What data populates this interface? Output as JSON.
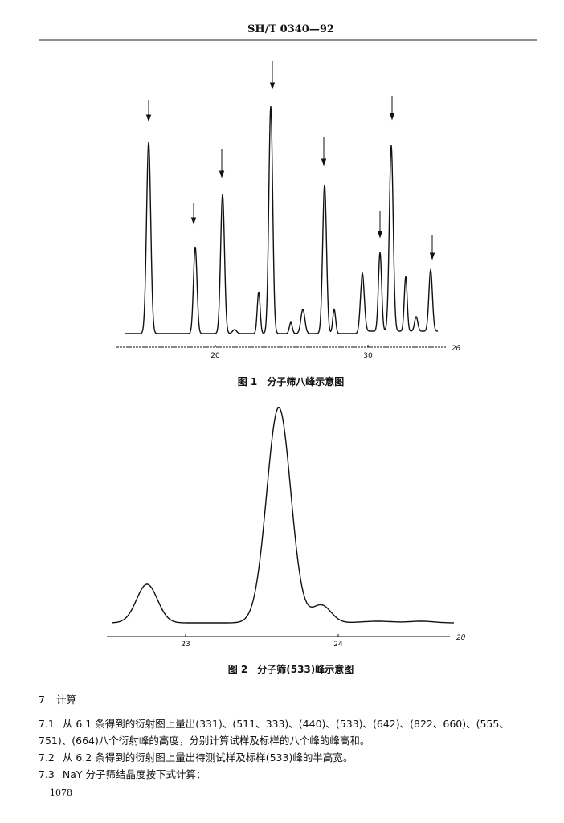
{
  "header": "SH/T 0340—92",
  "figures": [
    {
      "caption": "图 1　分子筛八峰示意图",
      "x_axis_label": "2θ",
      "xticks": [
        "20",
        "30"
      ]
    },
    {
      "caption": "图 2　分子筛(533)峰示意图",
      "x_axis_label": "2θ",
      "xticks": [
        "23",
        "24"
      ]
    }
  ],
  "section": {
    "number": "7",
    "title": "计算"
  },
  "paragraphs": [
    {
      "number": "7.1",
      "text": "从 6.1 条得到的衍射图上量出(331)、(511、333)、(440)、(533)、(642)、(822、660)、(555、751)、(664)八个衍射峰的高度，分别计算试样及标样的八个峰的峰高和。"
    },
    {
      "number": "7.2",
      "text": "从 6.2 条得到的衍射图上量出待测试样及标样(533)峰的半高宽。"
    },
    {
      "number": "7.3",
      "text": "NaY 分子筛结晶度按下式计算："
    }
  ],
  "page_number": "1078"
}
